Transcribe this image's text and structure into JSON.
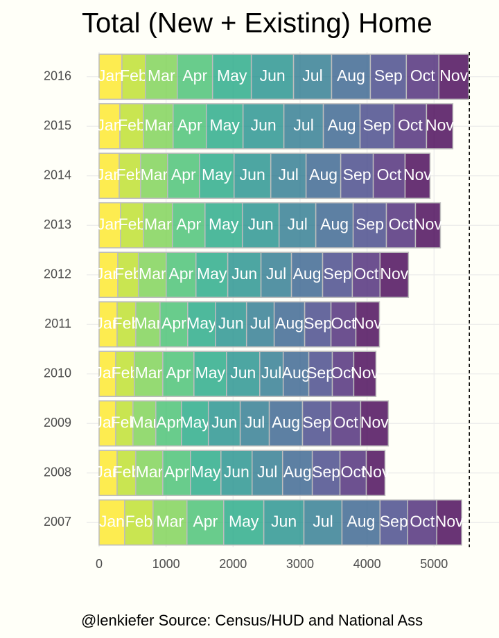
{
  "chart_data": {
    "type": "stacked_bar_horizontal",
    "title": "Total (New + Existing) Home",
    "caption": "@lenkiefer Source: Census/HUD and National Ass",
    "categories": [
      "2007",
      "2008",
      "2009",
      "2010",
      "2011",
      "2012",
      "2013",
      "2014",
      "2015",
      "2016"
    ],
    "series": [
      {
        "name": "Jan",
        "color": "#FDE725",
        "values": [
          382,
          269,
          248,
          248,
          269,
          279,
          320,
          300,
          310,
          341
        ]
      },
      {
        "name": "Feb",
        "color": "#BBDF27",
        "values": [
          424,
          279,
          258,
          279,
          279,
          310,
          341,
          320,
          351,
          351
        ]
      },
      {
        "name": "Mar",
        "color": "#7AD151",
        "values": [
          506,
          403,
          341,
          424,
          362,
          413,
          434,
          403,
          444,
          475
        ]
      },
      {
        "name": "Apr",
        "color": "#43BF71",
        "values": [
          548,
          413,
          382,
          465,
          413,
          444,
          486,
          475,
          496,
          527
        ]
      },
      {
        "name": "May",
        "color": "#22A884",
        "values": [
          599,
          455,
          403,
          486,
          413,
          475,
          558,
          517,
          548,
          579
        ]
      },
      {
        "name": "Jun",
        "color": "#21908C",
        "values": [
          599,
          465,
          475,
          496,
          465,
          496,
          548,
          548,
          610,
          630
        ]
      },
      {
        "name": "Jul",
        "color": "#2A788E",
        "values": [
          568,
          455,
          434,
          351,
          413,
          455,
          548,
          527,
          589,
          568
        ]
      },
      {
        "name": "Aug",
        "color": "#35608D",
        "values": [
          568,
          444,
          496,
          382,
          455,
          465,
          558,
          517,
          548,
          579
        ]
      },
      {
        "name": "Sep",
        "color": "#414487",
        "values": [
          413,
          413,
          424,
          351,
          393,
          444,
          496,
          486,
          506,
          537
        ]
      },
      {
        "name": "Oct",
        "color": "#482576",
        "values": [
          434,
          393,
          444,
          320,
          372,
          413,
          434,
          475,
          486,
          486
        ]
      },
      {
        "name": "Nov",
        "color": "#440154",
        "values": [
          372,
          279,
          413,
          331,
          351,
          424,
          372,
          372,
          393,
          444
        ]
      }
    ],
    "xlim": [
      -186,
      5970
    ],
    "xticks": [
      0,
      1000,
      2000,
      3000,
      4000,
      5000
    ],
    "reference_line": 5527,
    "grid": true
  }
}
